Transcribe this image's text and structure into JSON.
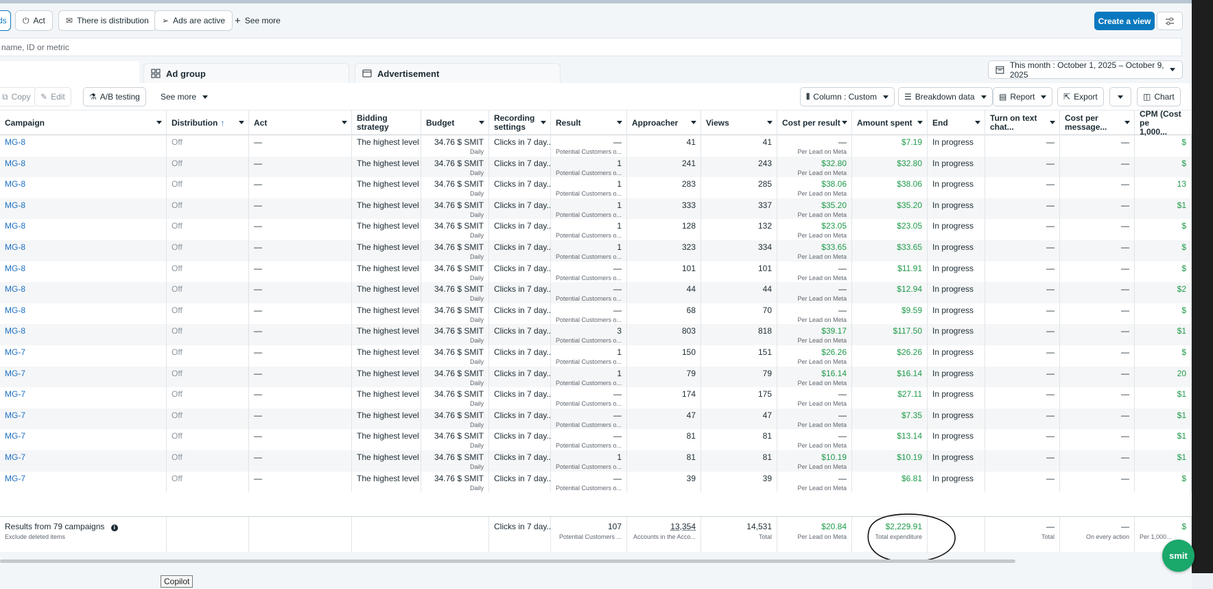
{
  "filters": {
    "partial": "ds",
    "act": "Act",
    "distribution": "There is distribution",
    "ads_active": "Ads are active",
    "see_more": "See more"
  },
  "create_view": "Create a view",
  "search_placeholder": "name, ID or metric",
  "tabs": {
    "ad_group": "Ad group",
    "advertisement": "Advertisement"
  },
  "date_range": "This month : October 1, 2025 – October 9, 2025",
  "toolbar": {
    "copy": "Copy",
    "edit": "Edit",
    "ab_testing": "A/B testing",
    "see_more": "See more",
    "column": "Column : Custom",
    "breakdown": "Breakdown data",
    "report": "Report",
    "export": "Export",
    "chart": "Chart"
  },
  "headers": {
    "campaign": "Campaign",
    "distribution": "Distribution",
    "act": "Act",
    "bidding": "Bidding strategy",
    "budget": "Budget",
    "recording1": "Recording",
    "recording2": "settings",
    "result": "Result",
    "approacher": "Approacher",
    "views": "Views",
    "cpr": "Cost per result",
    "spent": "Amount spent",
    "end": "End",
    "chat1": "Turn on text",
    "chat2": "chat...",
    "cpm_msg1": "Cost per",
    "cpm_msg2": "message...",
    "cpm1": "CPM (Cost pe",
    "cpm2": "1,000..."
  },
  "rows": [
    {
      "campaign": "MG-8",
      "dist": "Off",
      "act": "—",
      "bid": "The highest level",
      "budget": "34.76 $ SMIT",
      "period": "Daily",
      "rec": "Clicks in 7 day...",
      "result": "—",
      "result_sub": "Potential Customers o...",
      "reach": "41",
      "views": "41",
      "cpr": "—",
      "cpr_sub": "Per Lead on Meta",
      "spent": "$7.19",
      "end": "In progress",
      "chat": "—",
      "msg": "—",
      "cpm": "$"
    },
    {
      "campaign": "MG-8",
      "dist": "Off",
      "act": "—",
      "bid": "The highest level",
      "budget": "34.76 $ SMIT",
      "period": "Daily",
      "rec": "Clicks in 7 day...",
      "result": "1",
      "result_sub": "Potential Customers o...",
      "reach": "241",
      "views": "243",
      "cpr": "$32.80",
      "cpr_sub": "Per Lead on Meta",
      "spent": "$32.80",
      "end": "In progress",
      "chat": "—",
      "msg": "—",
      "cpm": "$"
    },
    {
      "campaign": "MG-8",
      "dist": "Off",
      "act": "—",
      "bid": "The highest level",
      "budget": "34.76 $ SMIT",
      "period": "Daily",
      "rec": "Clicks in 7 day...",
      "result": "1",
      "result_sub": "Potential Customers o...",
      "reach": "283",
      "views": "285",
      "cpr": "$38.06",
      "cpr_sub": "Per Lead on Meta",
      "spent": "$38.06",
      "end": "In progress",
      "chat": "—",
      "msg": "—",
      "cpm": "13"
    },
    {
      "campaign": "MG-8",
      "dist": "Off",
      "act": "—",
      "bid": "The highest level",
      "budget": "34.76 $ SMIT",
      "period": "Daily",
      "rec": "Clicks in 7 day...",
      "result": "1",
      "result_sub": "Potential Customers o...",
      "reach": "333",
      "views": "337",
      "cpr": "$35.20",
      "cpr_sub": "Per Lead on Meta",
      "spent": "$35.20",
      "end": "In progress",
      "chat": "—",
      "msg": "—",
      "cpm": "$1"
    },
    {
      "campaign": "MG-8",
      "dist": "Off",
      "act": "—",
      "bid": "The highest level",
      "budget": "34.76 $ SMIT",
      "period": "Daily",
      "rec": "Clicks in 7 day...",
      "result": "1",
      "result_sub": "Potential Customers o...",
      "reach": "128",
      "views": "132",
      "cpr": "$23.05",
      "cpr_sub": "Per Lead on Meta",
      "spent": "$23.05",
      "end": "In progress",
      "chat": "—",
      "msg": "—",
      "cpm": "$"
    },
    {
      "campaign": "MG-8",
      "dist": "Off",
      "act": "—",
      "bid": "The highest level",
      "budget": "34.76 $ SMIT",
      "period": "Daily",
      "rec": "Clicks in 7 day...",
      "result": "1",
      "result_sub": "Potential Customers o...",
      "reach": "323",
      "views": "334",
      "cpr": "$33.65",
      "cpr_sub": "Per Lead on Meta",
      "spent": "$33.65",
      "end": "In progress",
      "chat": "—",
      "msg": "—",
      "cpm": "$"
    },
    {
      "campaign": "MG-8",
      "dist": "Off",
      "act": "—",
      "bid": "The highest level",
      "budget": "34.76 $ SMIT",
      "period": "Daily",
      "rec": "Clicks in 7 day...",
      "result": "—",
      "result_sub": "Potential Customers o...",
      "reach": "101",
      "views": "101",
      "cpr": "—",
      "cpr_sub": "Per Lead on Meta",
      "spent": "$11.91",
      "end": "In progress",
      "chat": "—",
      "msg": "—",
      "cpm": "$"
    },
    {
      "campaign": "MG-8",
      "dist": "Off",
      "act": "—",
      "bid": "The highest level",
      "budget": "34.76 $ SMIT",
      "period": "Daily",
      "rec": "Clicks in 7 day...",
      "result": "—",
      "result_sub": "Potential Customers o...",
      "reach": "44",
      "views": "44",
      "cpr": "—",
      "cpr_sub": "Per Lead on Meta",
      "spent": "$12.94",
      "end": "In progress",
      "chat": "—",
      "msg": "—",
      "cpm": "$2"
    },
    {
      "campaign": "MG-8",
      "dist": "Off",
      "act": "—",
      "bid": "The highest level",
      "budget": "34.76 $ SMIT",
      "period": "Daily",
      "rec": "Clicks in 7 day...",
      "result": "—",
      "result_sub": "Potential Customers o...",
      "reach": "68",
      "views": "70",
      "cpr": "—",
      "cpr_sub": "Per Lead on Meta",
      "spent": "$9.59",
      "end": "In progress",
      "chat": "—",
      "msg": "—",
      "cpm": "$"
    },
    {
      "campaign": "MG-8",
      "dist": "Off",
      "act": "—",
      "bid": "The highest level",
      "budget": "34.76 $ SMIT",
      "period": "Daily",
      "rec": "Clicks in 7 day...",
      "result": "3",
      "result_sub": "Potential Customers o...",
      "reach": "803",
      "views": "818",
      "cpr": "$39.17",
      "cpr_sub": "Per Lead on Meta",
      "spent": "$117.50",
      "end": "In progress",
      "chat": "—",
      "msg": "—",
      "cpm": "$1"
    },
    {
      "campaign": "MG-7",
      "dist": "Off",
      "act": "—",
      "bid": "The highest level",
      "budget": "34.76 $ SMIT",
      "period": "Daily",
      "rec": "Clicks in 7 day...",
      "result": "1",
      "result_sub": "Potential Customers o...",
      "reach": "150",
      "views": "151",
      "cpr": "$26.26",
      "cpr_sub": "Per Lead on Meta",
      "spent": "$26.26",
      "end": "In progress",
      "chat": "—",
      "msg": "—",
      "cpm": "$"
    },
    {
      "campaign": "MG-7",
      "dist": "Off",
      "act": "—",
      "bid": "The highest level",
      "budget": "34.76 $ SMIT",
      "period": "Daily",
      "rec": "Clicks in 7 day...",
      "result": "1",
      "result_sub": "Potential Customers o...",
      "reach": "79",
      "views": "79",
      "cpr": "$16.14",
      "cpr_sub": "Per Lead on Meta",
      "spent": "$16.14",
      "end": "In progress",
      "chat": "—",
      "msg": "—",
      "cpm": "20"
    },
    {
      "campaign": "MG-7",
      "dist": "Off",
      "act": "—",
      "bid": "The highest level",
      "budget": "34.76 $ SMIT",
      "period": "Daily",
      "rec": "Clicks in 7 day...",
      "result": "—",
      "result_sub": "Potential Customers o...",
      "reach": "174",
      "views": "175",
      "cpr": "—",
      "cpr_sub": "Per Lead on Meta",
      "spent": "$27.11",
      "end": "In progress",
      "chat": "—",
      "msg": "—",
      "cpm": "$1"
    },
    {
      "campaign": "MG-7",
      "dist": "Off",
      "act": "—",
      "bid": "The highest level",
      "budget": "34.76 $ SMIT",
      "period": "Daily",
      "rec": "Clicks in 7 day...",
      "result": "—",
      "result_sub": "Potential Customers o...",
      "reach": "47",
      "views": "47",
      "cpr": "—",
      "cpr_sub": "Per Lead on Meta",
      "spent": "$7.35",
      "end": "In progress",
      "chat": "—",
      "msg": "—",
      "cpm": "$1"
    },
    {
      "campaign": "MG-7",
      "dist": "Off",
      "act": "—",
      "bid": "The highest level",
      "budget": "34.76 $ SMIT",
      "period": "Daily",
      "rec": "Clicks in 7 day...",
      "result": "—",
      "result_sub": "Potential Customers o...",
      "reach": "81",
      "views": "81",
      "cpr": "—",
      "cpr_sub": "Per Lead on Meta",
      "spent": "$13.14",
      "end": "In progress",
      "chat": "—",
      "msg": "—",
      "cpm": "$1"
    },
    {
      "campaign": "MG-7",
      "dist": "Off",
      "act": "—",
      "bid": "The highest level",
      "budget": "34.76 $ SMIT",
      "period": "Daily",
      "rec": "Clicks in 7 day...",
      "result": "1",
      "result_sub": "Potential Customers o...",
      "reach": "81",
      "views": "81",
      "cpr": "$10.19",
      "cpr_sub": "Per Lead on Meta",
      "spent": "$10.19",
      "end": "In progress",
      "chat": "—",
      "msg": "—",
      "cpm": "$1"
    },
    {
      "campaign": "MG-7",
      "dist": "Off",
      "act": "—",
      "bid": "The highest level",
      "budget": "34.76 $ SMIT",
      "period": "Daily",
      "rec": "Clicks in 7 day...",
      "result": "—",
      "result_sub": "Potential Customers o...",
      "reach": "39",
      "views": "39",
      "cpr": "—",
      "cpr_sub": "Per Lead on Meta",
      "spent": "$6.81",
      "end": "In progress",
      "chat": "—",
      "msg": "—",
      "cpm": "$"
    }
  ],
  "footer": {
    "results": "Results from 79 campaigns",
    "exclude": "Exclude deleted items",
    "rec": "Clicks in 7 day...",
    "result": "107",
    "result_sub": "Potential Customers ...",
    "reach": "13,354",
    "reach_sub": "Accounts in the Acco...",
    "views": "14,531",
    "views_sub": "Total",
    "cpr": "$20.84",
    "cpr_sub": "Per Lead on Meta",
    "spent": "$2,229.91",
    "spent_sub": "Total expenditure",
    "chat": "—",
    "chat_sub": "Total",
    "msg": "—",
    "msg_sub": "On every action",
    "cpm": "$",
    "cpm_sub": "Per 1,000..."
  },
  "copilot": "Copilot",
  "fab": "smit"
}
